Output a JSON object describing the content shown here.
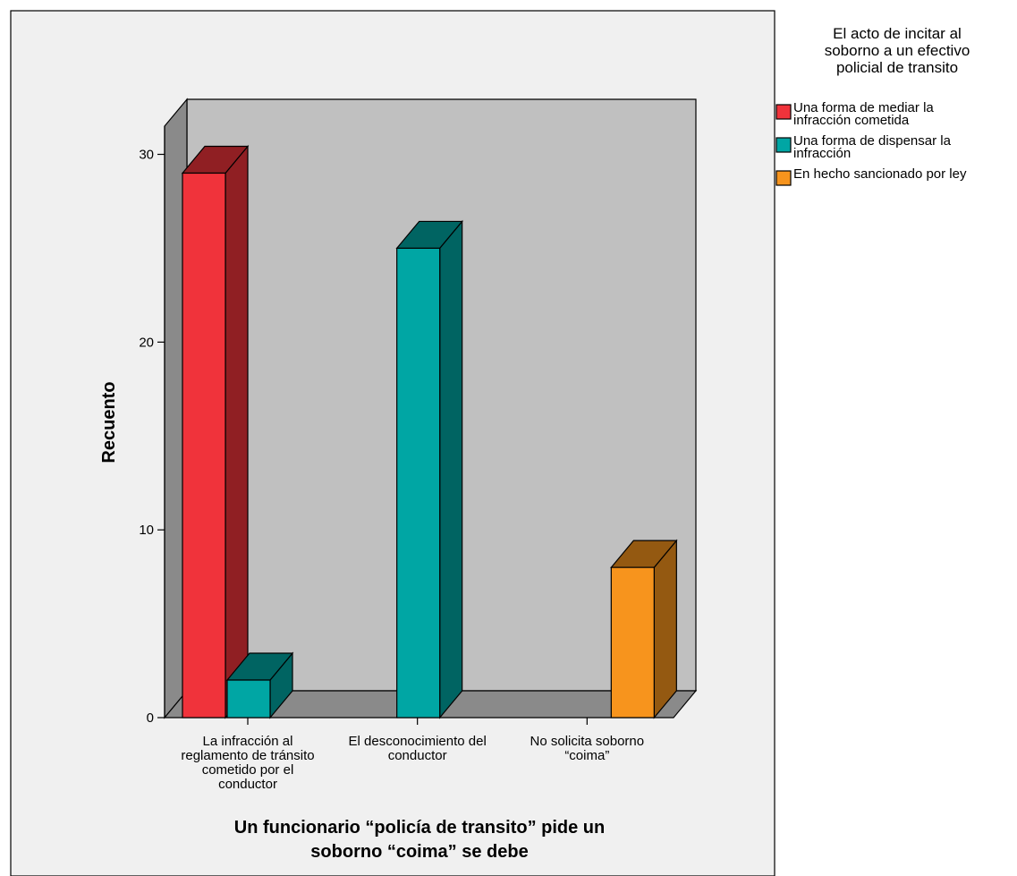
{
  "chart_data": {
    "type": "bar",
    "title": "",
    "xlabel": "Un funcionario “policía de transito” pide un soborno “coima” se debe",
    "xlabel_lines": [
      "Un funcionario “policía de transito” pide un",
      "soborno “coima” se debe"
    ],
    "ylabel": "Recuento",
    "ylim": [
      0,
      30
    ],
    "yticks": [
      0,
      10,
      20,
      30
    ],
    "categories": [
      "La infracción al reglamento de tránsito cometido por el conductor",
      "El desconocimiento del conductor",
      "No solicita soborno “coima”"
    ],
    "category_lines": [
      [
        "La infracción al",
        "reglamento de tránsito",
        "cometido por el",
        "conductor"
      ],
      [
        "El desconocimiento del",
        "conductor"
      ],
      [
        "No solicita soborno",
        "“coima”"
      ]
    ],
    "legend_title": "El acto de incitar al soborno a un efectivo policial de transito",
    "legend_title_lines": [
      "El acto de incitar al",
      "soborno a un efectivo",
      "policial de transito"
    ],
    "legend_position": "top-right",
    "grid": false,
    "style": "3d",
    "series": [
      {
        "name": "Una forma de mediar la infracción cometida",
        "legend_lines": [
          "Una forma de mediar la",
          "infracción cometida"
        ],
        "color": "#f0333b",
        "values": [
          29,
          0,
          0
        ]
      },
      {
        "name": "Una forma de dispensar la infracción",
        "legend_lines": [
          "Una forma de dispensar la",
          "infracción"
        ],
        "color": "#00a6a4",
        "values": [
          2,
          25,
          0
        ]
      },
      {
        "name": "En hecho sancionado por ley",
        "legend_lines": [
          "En hecho sancionado por ley"
        ],
        "color": "#f7941d",
        "values": [
          0,
          0,
          8
        ]
      }
    ]
  }
}
